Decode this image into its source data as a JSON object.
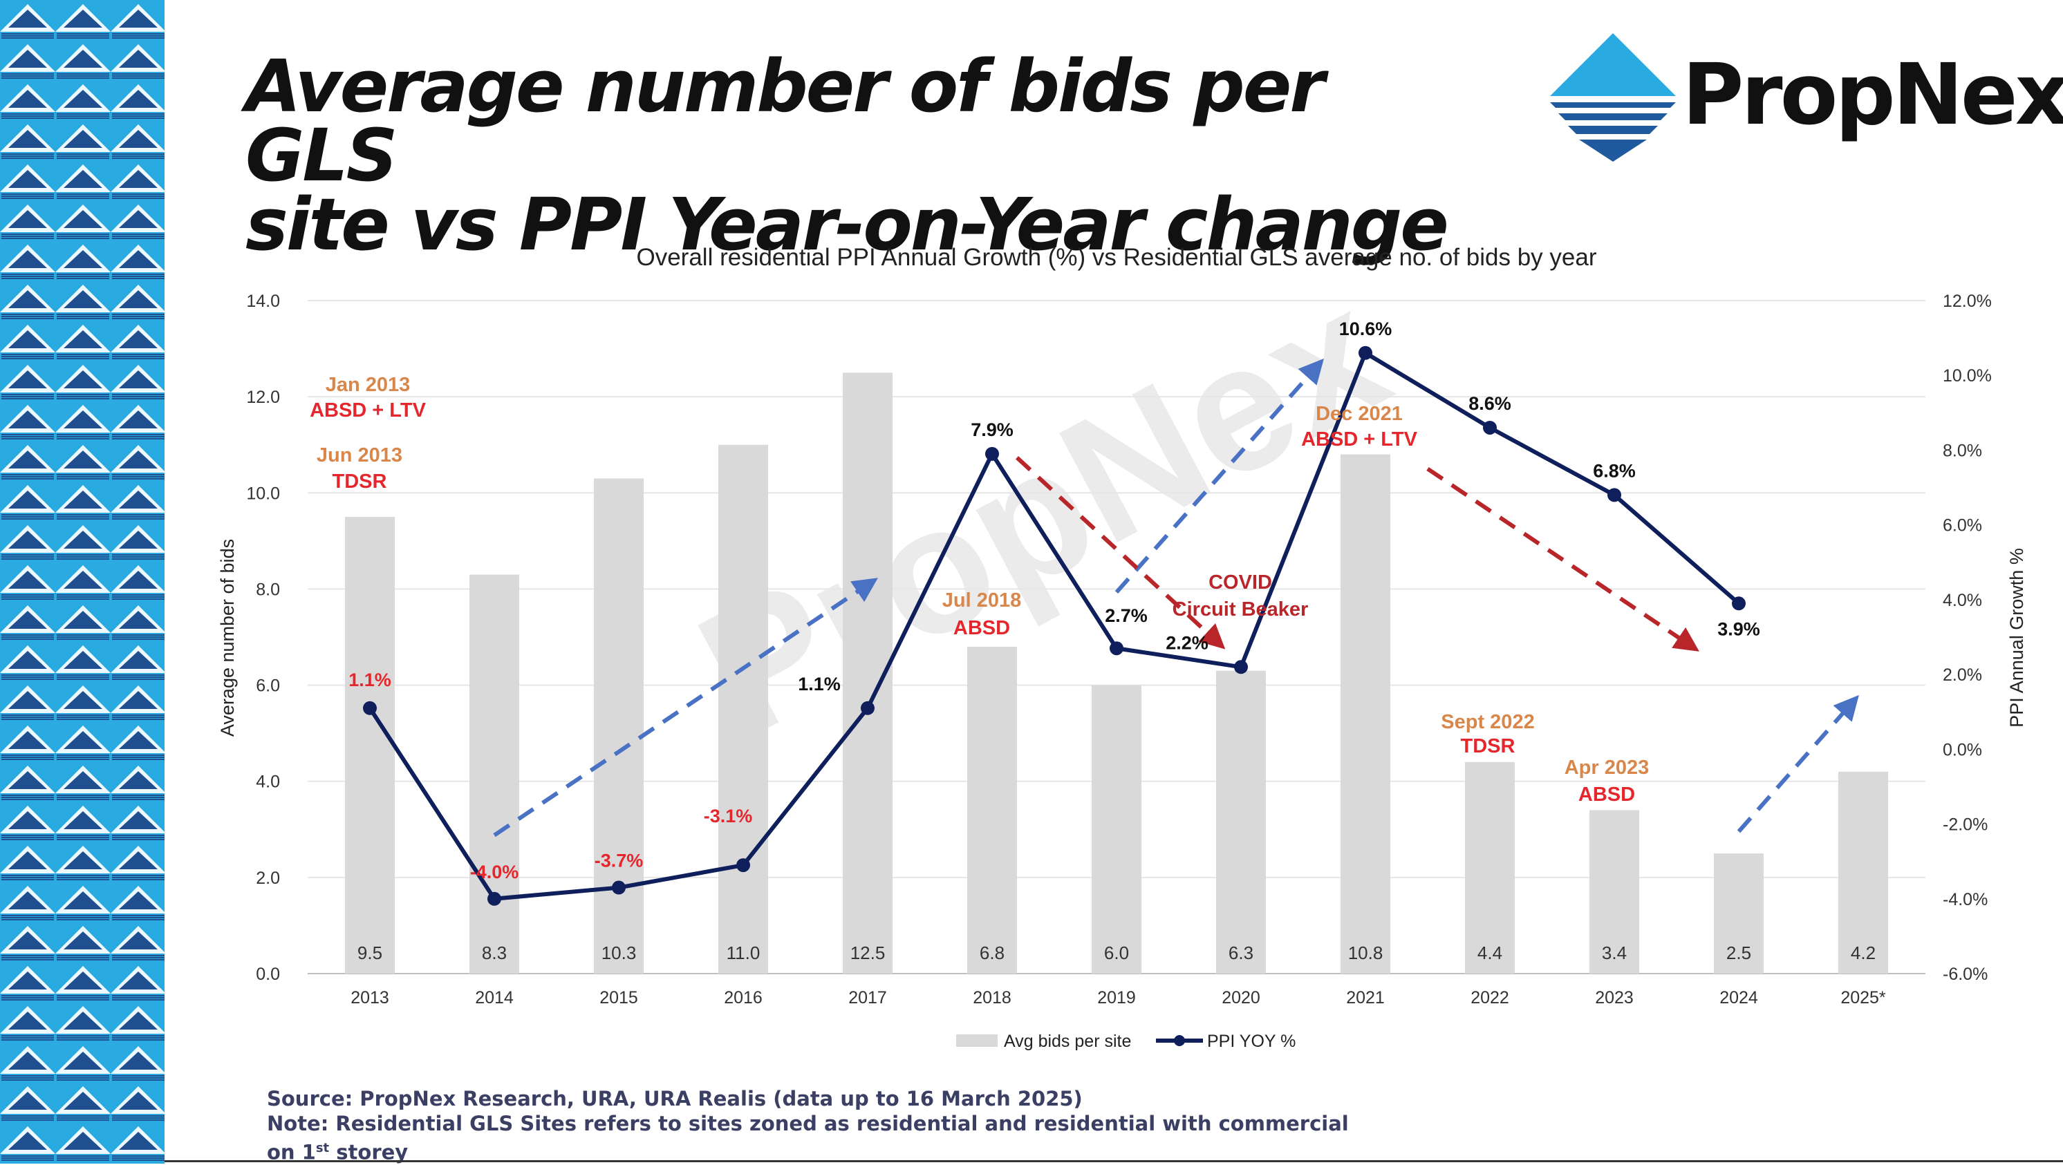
{
  "title": {
    "line1": "Average number of bids per GLS",
    "line2": "site vs PPI Year-on-Year change"
  },
  "logo": {
    "text": "PropNex"
  },
  "watermark": "PropNex",
  "colors": {
    "bars": "#d9d9d9",
    "line": "#0f1f5c",
    "negative_label": "#e5262c",
    "policy_date": "#d9864a",
    "policy_name": "#e5262c",
    "arrow_up": "#4a72c4",
    "arrow_down": "#b8262a",
    "pattern_light": "#29abe2",
    "pattern_dark": "#1f4f8f"
  },
  "chart_data": {
    "type": "bar",
    "title": "Overall residential PPI Annual Growth (%) vs Residential GLS average no. of bids by year",
    "categories": [
      "2013",
      "2014",
      "2015",
      "2016",
      "2017",
      "2018",
      "2019",
      "2020",
      "2021",
      "2022",
      "2023",
      "2024",
      "2025*"
    ],
    "series": [
      {
        "name": "Avg bids per site",
        "type": "bar",
        "axis": "left",
        "values": [
          9.5,
          8.3,
          10.3,
          11.0,
          12.5,
          6.8,
          6.0,
          6.3,
          10.8,
          4.4,
          3.4,
          2.5,
          4.2
        ],
        "labels": [
          "9.5",
          "8.3",
          "10.3",
          "11.0",
          "12.5",
          "6.8",
          "6.0",
          "6.3",
          "10.8",
          "4.4",
          "3.4",
          "2.5",
          "4.2"
        ]
      },
      {
        "name": "PPI YOY %",
        "type": "line",
        "axis": "right",
        "values": [
          1.1,
          -4.0,
          -3.7,
          -3.1,
          1.1,
          7.9,
          2.7,
          2.2,
          10.6,
          8.6,
          6.8,
          3.9,
          null
        ],
        "labels": [
          "1.1%",
          "-4.0%",
          "-3.7%",
          "-3.1%",
          "1.1%",
          "7.9%",
          "2.7%",
          "2.2%",
          "10.6%",
          "8.6%",
          "6.8%",
          "3.9%",
          ""
        ]
      }
    ],
    "ylabel": "Average number of bids",
    "y2label": "PPI Annual Growth %",
    "ylim": [
      0,
      14
    ],
    "y2lim": [
      -6,
      12
    ],
    "yticks": [
      "0.0",
      "2.0",
      "4.0",
      "6.0",
      "8.0",
      "10.0",
      "12.0",
      "14.0"
    ],
    "y2ticks": [
      "-6.0%",
      "-4.0%",
      "-2.0%",
      "0.0%",
      "2.0%",
      "4.0%",
      "6.0%",
      "8.0%",
      "10.0%",
      "12.0%"
    ],
    "legend_position": "bottom",
    "grid": true,
    "policy_annotations": [
      {
        "date": "Jan 2013",
        "policy": "ABSD + LTV"
      },
      {
        "date": "Jun 2013",
        "policy": "TDSR"
      },
      {
        "date": "Jul 2018",
        "policy": "ABSD"
      },
      {
        "date": "Dec 2021",
        "policy": "ABSD + LTV"
      },
      {
        "date": "Sept 2022",
        "policy": "TDSR"
      },
      {
        "date": "Apr 2023",
        "policy": "ABSD"
      }
    ],
    "event_annotations": [
      {
        "line1": "COVID",
        "line2": "Circuit Beaker"
      }
    ]
  },
  "footer": {
    "source": "Source: PropNex Research, URA, URA Realis (data up to 16 March 2025)",
    "note_line1": "Note: Residential GLS Sites refers to sites zoned as residential and residential with commercial",
    "note_line2_prefix": "on 1",
    "note_line2_sup": "st",
    "note_line2_suffix": " storey"
  }
}
